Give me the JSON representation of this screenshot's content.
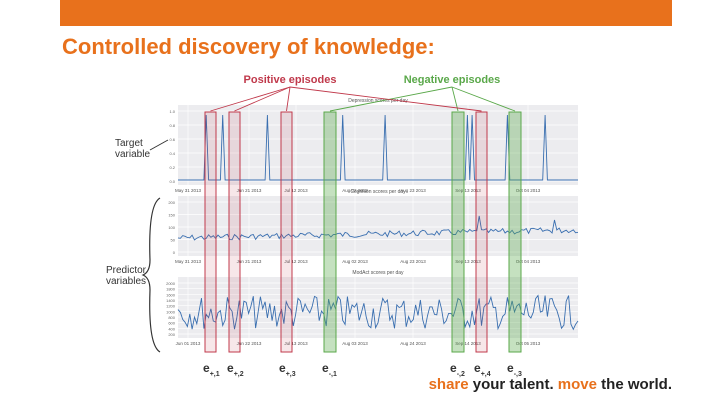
{
  "slide": {
    "title": "Controlled discovery of knowledge:",
    "accent_color": "#e8711c"
  },
  "figure": {
    "legend_positive": "Positive episodes",
    "legend_negative": "Negative episodes",
    "positive_color": "#c0394b",
    "negative_color": "#5aa84a",
    "side_labels": {
      "target": [
        "Target",
        "variable"
      ],
      "predictor": [
        "Predictor",
        "variables"
      ]
    },
    "panels": [
      {
        "heading": "Depression scores per day",
        "x_ticks": [
          "May 31 2013",
          "Jun 21 2013",
          "Jul 12 2013",
          "Aug 02 2013",
          "Aug 23 2013",
          "Sep 13 2013",
          "Oct 04 2013"
        ],
        "y_ticks": [
          "1.0",
          "0.8",
          "0.6",
          "0.4",
          "0.2",
          "0.0"
        ]
      },
      {
        "heading": "Cognition scores per day",
        "x_ticks": [
          "May 31 2013",
          "Jun 21 2013",
          "Jul 12 2013",
          "Aug 02 2013",
          "Aug 23 2013",
          "Sep 13 2013",
          "Oct 04 2013"
        ],
        "y_ticks": [
          "200",
          "150",
          "100",
          "50",
          "0"
        ]
      },
      {
        "heading": "ModAct scores per day",
        "x_ticks": [
          "Jun 01 2013",
          "Jun 22 2013",
          "Jul 13 2013",
          "Aug 03 2013",
          "Aug 24 2013",
          "Sep 14 2013",
          "Oct 05 2013"
        ],
        "y_ticks": [
          "2000",
          "1800",
          "1600",
          "1400",
          "1200",
          "1000",
          "800",
          "600",
          "400",
          "200"
        ]
      }
    ],
    "episodes": [
      {
        "type": "positive",
        "base": "e",
        "sub": "+,1"
      },
      {
        "type": "positive",
        "base": "e",
        "sub": "+,2"
      },
      {
        "type": "positive",
        "base": "e",
        "sub": "+,3"
      },
      {
        "type": "negative",
        "base": "e",
        "sub": "-,1"
      },
      {
        "type": "negative",
        "base": "e",
        "sub": "-,2"
      },
      {
        "type": "positive",
        "base": "e",
        "sub": "+,4"
      },
      {
        "type": "negative",
        "base": "e",
        "sub": "-,3"
      }
    ]
  },
  "tagline": {
    "w1": "share",
    "w2": "your talent.",
    "w3": "move",
    "w4": "the world."
  }
}
